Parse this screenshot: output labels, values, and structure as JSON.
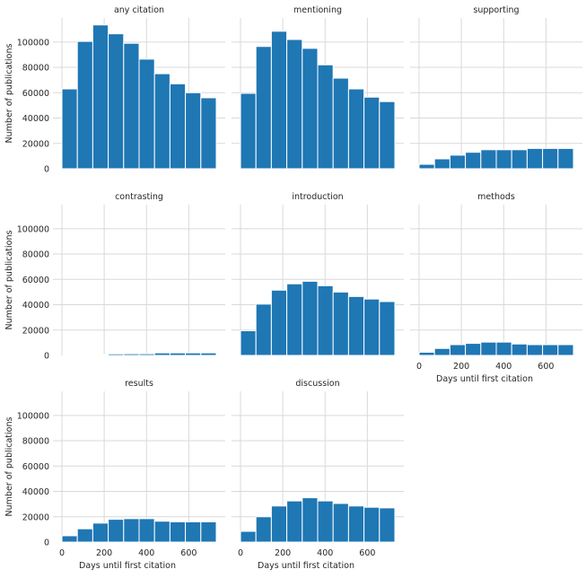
{
  "chart_data": {
    "type": "bar",
    "layout": "facet grid, 3 columns, shared axes",
    "xlabel": "Days until first citation",
    "ylabel": "Number of publications",
    "xlim": [
      0,
      730
    ],
    "ylim": [
      0,
      119000
    ],
    "x_ticks": [
      0,
      200,
      400,
      600
    ],
    "y_ticks": [
      0,
      20000,
      40000,
      60000,
      80000,
      100000
    ],
    "grid": true,
    "bar_color": "#1f77b4",
    "bin_edges": [
      0,
      73,
      146,
      219,
      292,
      365,
      438,
      511,
      584,
      657,
      730
    ],
    "panels": [
      {
        "title": "any citation",
        "values": [
          63000,
          100500,
          113500,
          106500,
          99000,
          86500,
          75000,
          67000,
          60000,
          56000
        ]
      },
      {
        "title": "mentioning",
        "values": [
          59500,
          96500,
          108500,
          102000,
          95000,
          82000,
          71500,
          63000,
          56500,
          53000
        ]
      },
      {
        "title": "supporting",
        "values": [
          3500,
          7800,
          10700,
          13000,
          15000,
          15000,
          15000,
          16000,
          16000,
          16000
        ]
      },
      {
        "title": "contrasting",
        "values": [
          0,
          500,
          700,
          1200,
          1300,
          1300,
          2000,
          2000,
          2000,
          2000
        ]
      },
      {
        "title": "introduction",
        "values": [
          19500,
          40500,
          51500,
          56500,
          58500,
          55000,
          50000,
          46500,
          44500,
          42500
        ]
      },
      {
        "title": "methods",
        "values": [
          2500,
          5500,
          8500,
          9500,
          10500,
          10500,
          9000,
          8500,
          8500,
          8500
        ]
      },
      {
        "title": "results",
        "values": [
          5000,
          10500,
          15000,
          18000,
          18500,
          18500,
          16500,
          16000,
          16000,
          16000
        ]
      },
      {
        "title": "discussion",
        "values": [
          8500,
          20000,
          28500,
          32500,
          35000,
          32500,
          30500,
          28500,
          27500,
          27000
        ]
      }
    ]
  }
}
